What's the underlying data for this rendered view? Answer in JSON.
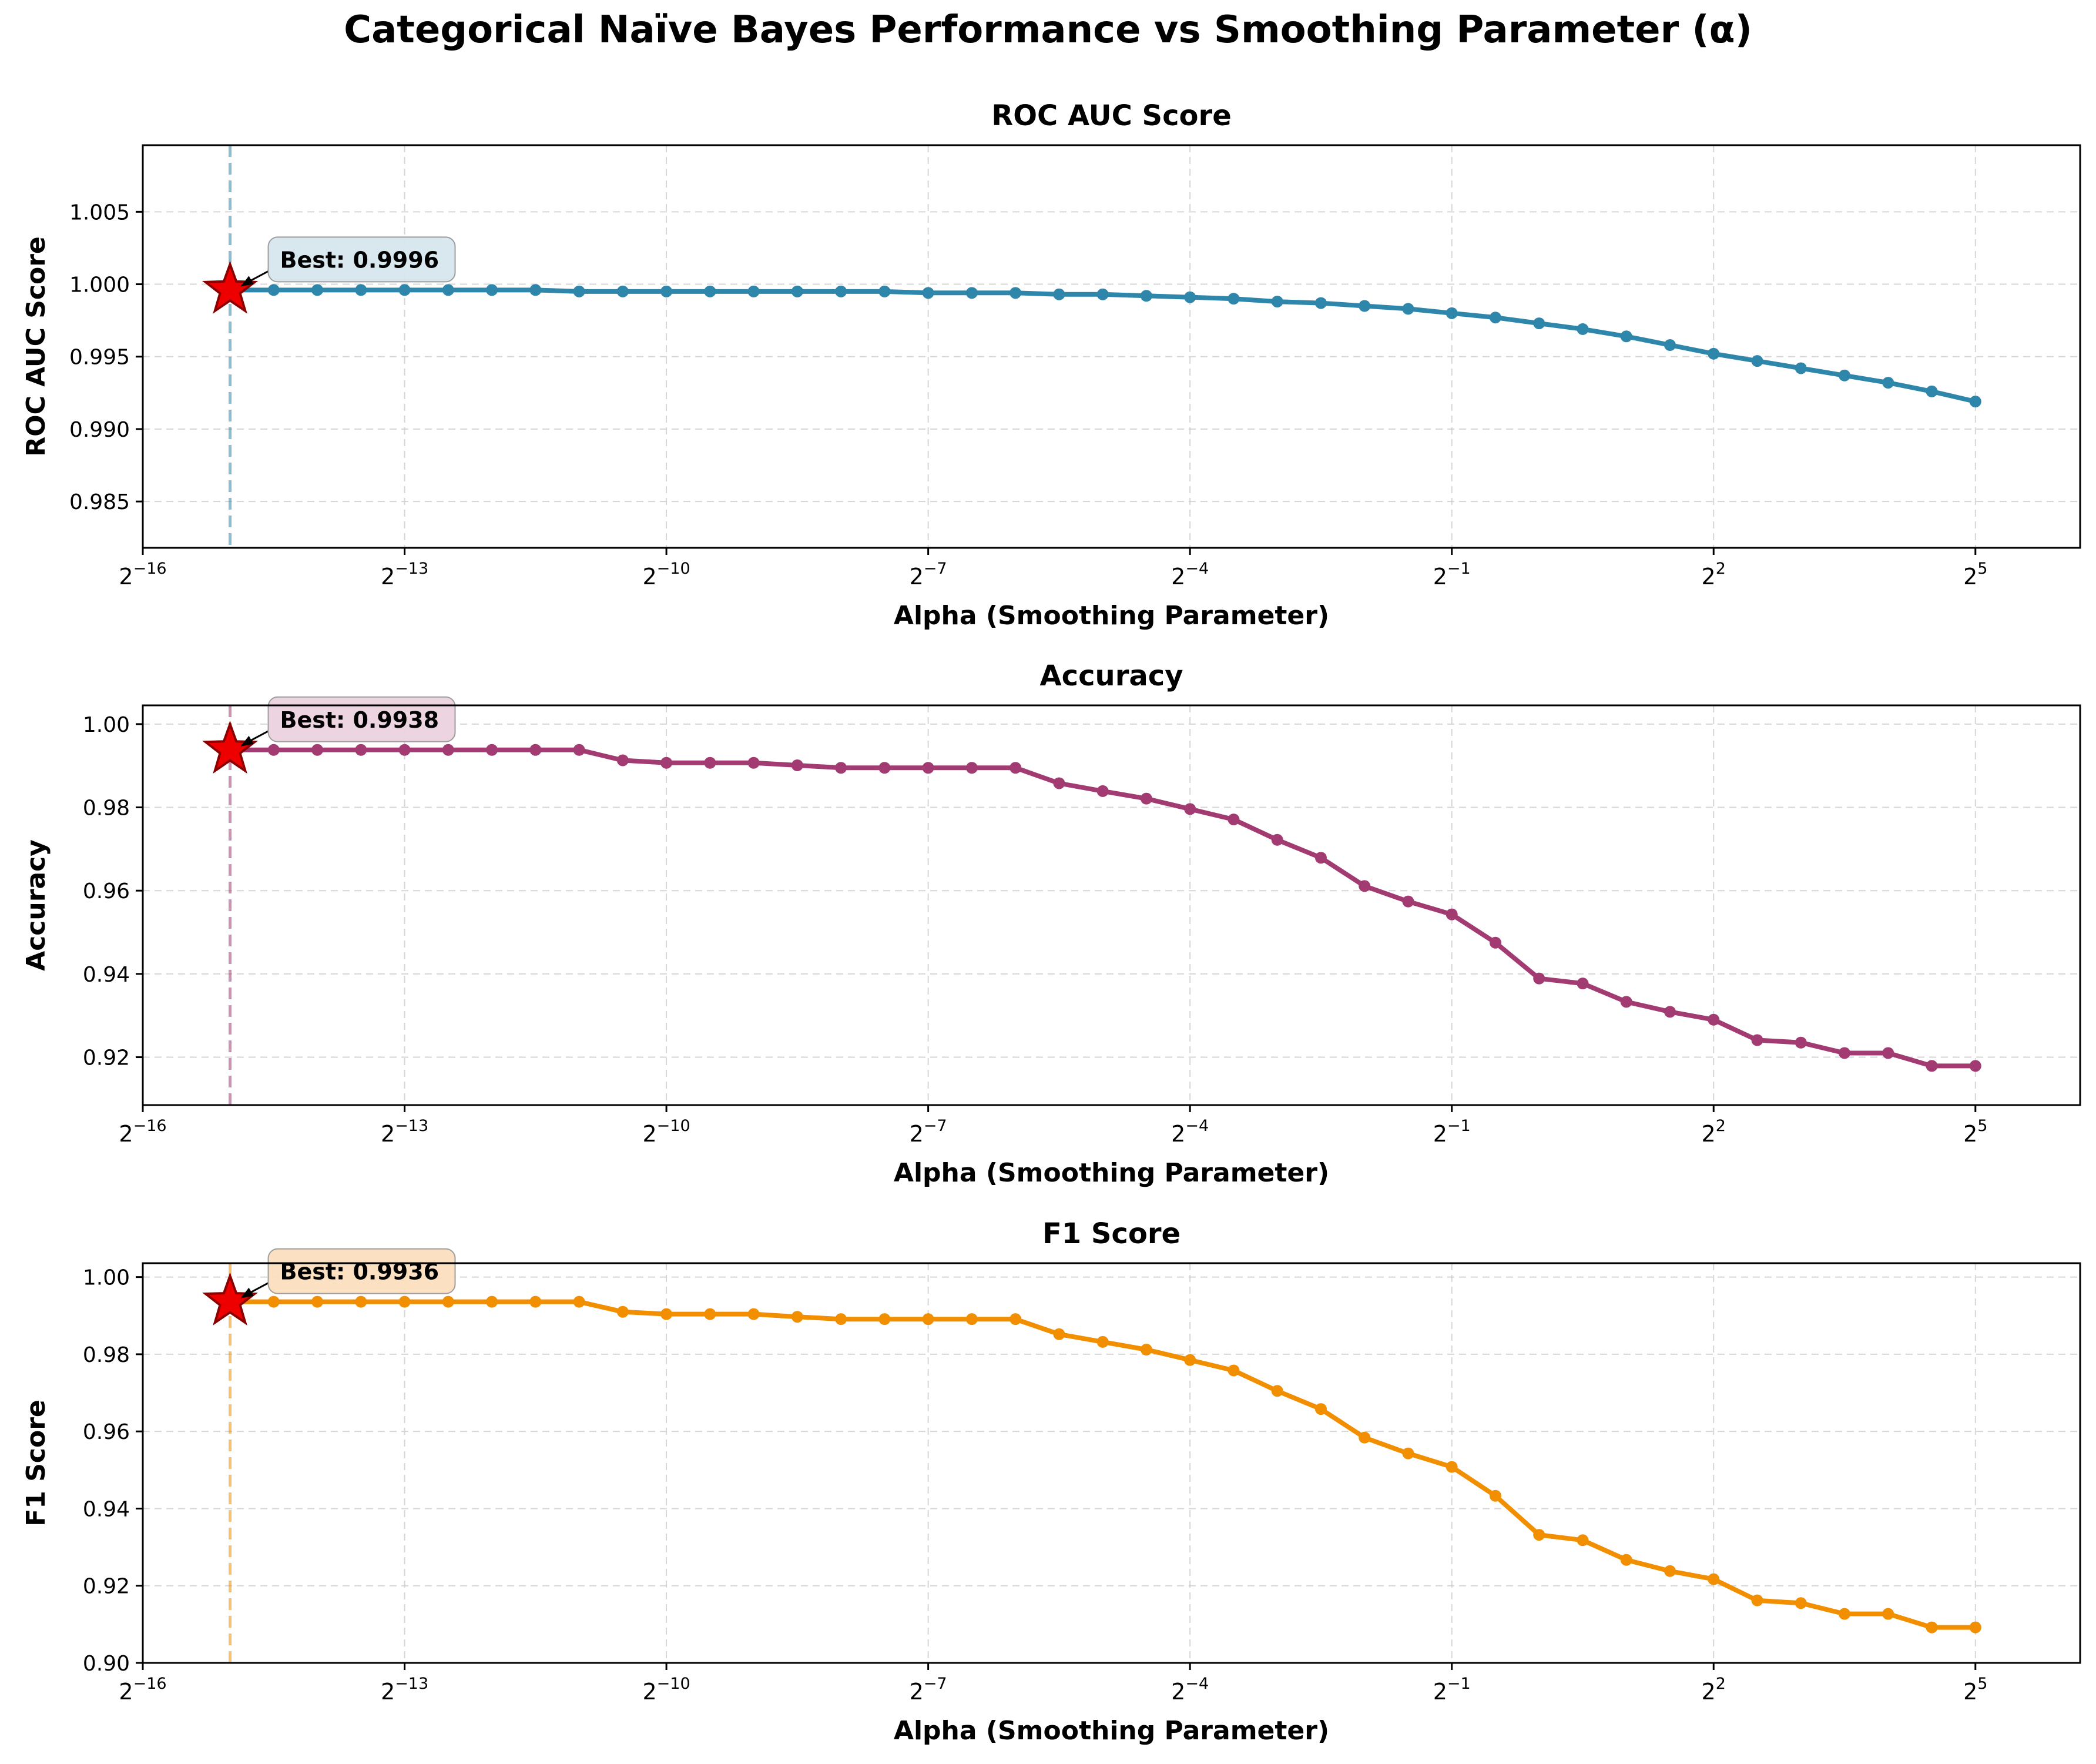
{
  "figure": {
    "title": "Categorical Naïve Bayes Performance vs Smoothing Parameter (α)"
  },
  "chart_data": [
    {
      "type": "line",
      "title": "ROC AUC Score",
      "xlabel": "Alpha (Smoothing Parameter)",
      "ylabel": "ROC AUC Score",
      "xscale": "log2",
      "xlim_log2": [
        -16,
        6.2
      ],
      "xticks_log2": [
        -16,
        -13,
        -10,
        -7,
        -4,
        -1,
        2,
        5
      ],
      "ylim": [
        0.9818,
        1.0096
      ],
      "yticks": [
        "0.985",
        "0.990",
        "0.995",
        "1.000",
        "1.005"
      ],
      "grid": true,
      "color": "#2E86AB",
      "x_log2": [
        -15,
        -14.5,
        -14,
        -13.5,
        -13,
        -12.5,
        -12,
        -11.5,
        -11,
        -10.5,
        -10,
        -9.5,
        -9,
        -8.5,
        -8,
        -7.5,
        -7,
        -6.5,
        -6,
        -5.5,
        -5,
        -4.5,
        -4,
        -3.5,
        -3,
        -2.5,
        -2,
        -1.5,
        -1,
        -0.5,
        0,
        0.5,
        1,
        1.5,
        2,
        2.5,
        3,
        3.5,
        4,
        4.5,
        5
      ],
      "values": [
        0.9996,
        0.9996,
        0.9996,
        0.9996,
        0.9996,
        0.9996,
        0.9996,
        0.9996,
        0.9995,
        0.9995,
        0.9995,
        0.9995,
        0.9995,
        0.9995,
        0.9995,
        0.9995,
        0.9994,
        0.9994,
        0.9994,
        0.9993,
        0.9993,
        0.9992,
        0.9991,
        0.999,
        0.9988,
        0.9987,
        0.9985,
        0.9983,
        0.998,
        0.9977,
        0.9973,
        0.9969,
        0.9964,
        0.9958,
        0.9952,
        0.9947,
        0.9942,
        0.9937,
        0.9932,
        0.9926,
        0.9919
      ],
      "best": {
        "x_log2": -15,
        "value": 0.9996,
        "label": "Best: 0.9996"
      }
    },
    {
      "type": "line",
      "title": "Accuracy",
      "xlabel": "Alpha (Smoothing Parameter)",
      "ylabel": "Accuracy",
      "xscale": "log2",
      "xlim_log2": [
        -16,
        6.2
      ],
      "xticks_log2": [
        -16,
        -13,
        -10,
        -7,
        -4,
        -1,
        2,
        5
      ],
      "ylim": [
        0.9085,
        1.0045
      ],
      "yticks": [
        "0.92",
        "0.94",
        "0.96",
        "0.98",
        "1.00"
      ],
      "grid": true,
      "color": "#A23B72",
      "x_log2": [
        -15,
        -14.5,
        -14,
        -13.5,
        -13,
        -12.5,
        -12,
        -11.5,
        -11,
        -10.5,
        -10,
        -9.5,
        -9,
        -8.5,
        -8,
        -7.5,
        -7,
        -6.5,
        -6,
        -5.5,
        -5,
        -4.5,
        -4,
        -3.5,
        -3,
        -2.5,
        -2,
        -1.5,
        -1,
        -0.5,
        0,
        0.5,
        1,
        1.5,
        2,
        2.5,
        3,
        3.5,
        4,
        4.5,
        5
      ],
      "values": [
        0.9938,
        0.9938,
        0.9938,
        0.9938,
        0.9938,
        0.9938,
        0.9938,
        0.9938,
        0.9938,
        0.9913,
        0.9907,
        0.9907,
        0.9907,
        0.9901,
        0.9895,
        0.9895,
        0.9895,
        0.9895,
        0.9895,
        0.9858,
        0.9839,
        0.9821,
        0.9796,
        0.9771,
        0.9722,
        0.9679,
        0.9611,
        0.9574,
        0.9543,
        0.9475,
        0.9389,
        0.9377,
        0.9333,
        0.9309,
        0.929,
        0.9241,
        0.9235,
        0.921,
        0.921,
        0.9179,
        0.9179
      ],
      "best": {
        "x_log2": -15,
        "value": 0.9938,
        "label": "Best: 0.9938"
      }
    },
    {
      "type": "line",
      "title": "F1 Score",
      "xlabel": "Alpha (Smoothing Parameter)",
      "ylabel": "F1 Score",
      "xscale": "log2",
      "xlim_log2": [
        -16,
        6.2
      ],
      "xticks_log2": [
        -16,
        -13,
        -10,
        -7,
        -4,
        -1,
        2,
        5
      ],
      "ylim": [
        0.9,
        1.0036
      ],
      "yticks": [
        "0.90",
        "0.92",
        "0.94",
        "0.96",
        "0.98",
        "1.00"
      ],
      "grid": true,
      "color": "#F18F01",
      "x_log2": [
        -15,
        -14.5,
        -14,
        -13.5,
        -13,
        -12.5,
        -12,
        -11.5,
        -11,
        -10.5,
        -10,
        -9.5,
        -9,
        -8.5,
        -8,
        -7.5,
        -7,
        -6.5,
        -6,
        -5.5,
        -5,
        -4.5,
        -4,
        -3.5,
        -3,
        -2.5,
        -2,
        -1.5,
        -1,
        -0.5,
        0,
        0.5,
        1,
        1.5,
        2,
        2.5,
        3,
        3.5,
        4,
        4.5,
        5
      ],
      "values": [
        0.9936,
        0.9936,
        0.9936,
        0.9936,
        0.9936,
        0.9936,
        0.9936,
        0.9936,
        0.9936,
        0.991,
        0.9904,
        0.9904,
        0.9904,
        0.9897,
        0.9891,
        0.9891,
        0.9891,
        0.9891,
        0.9891,
        0.9852,
        0.9832,
        0.9812,
        0.9785,
        0.9758,
        0.9705,
        0.9658,
        0.9584,
        0.9543,
        0.9508,
        0.9433,
        0.9332,
        0.9318,
        0.9267,
        0.9238,
        0.9217,
        0.9162,
        0.9155,
        0.9127,
        0.9127,
        0.9092,
        0.9092
      ],
      "best": {
        "x_log2": -15,
        "value": 0.9936,
        "label": "Best: 0.9936"
      }
    }
  ]
}
